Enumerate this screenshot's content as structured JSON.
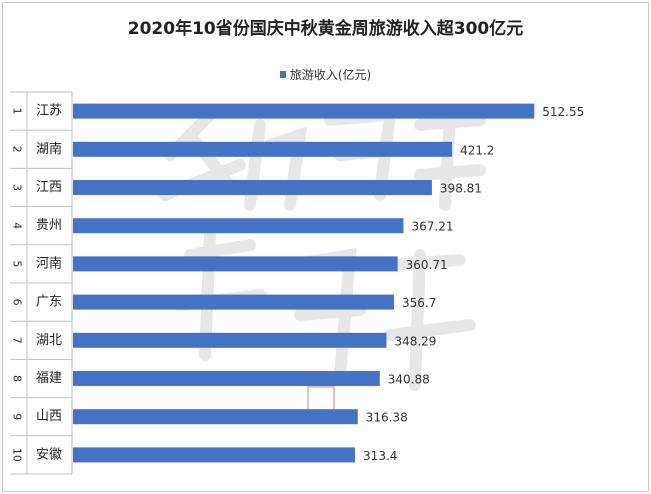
{
  "chart_data": {
    "type": "bar",
    "orientation": "horizontal",
    "title": "2020年10省份国庆中秋黄金周旅游收入超300亿元",
    "legend": "旅游收入(亿元)",
    "legend_position": "top",
    "ranks": [
      "1",
      "2",
      "3",
      "4",
      "5",
      "6",
      "7",
      "8",
      "9",
      "10"
    ],
    "categories": [
      "江苏",
      "湖南",
      "江西",
      "贵州",
      "河南",
      "广东",
      "湖北",
      "福建",
      "山西",
      "安徽"
    ],
    "values": [
      512.55,
      421.2,
      398.81,
      367.21,
      360.71,
      356.7,
      348.29,
      340.88,
      316.38,
      313.4
    ],
    "value_labels": [
      "512.55",
      "421.2",
      "398.81",
      "367.21",
      "360.71",
      "356.7",
      "348.29",
      "340.88",
      "316.38",
      "313.4"
    ],
    "xlim": [
      0,
      560
    ],
    "bar_color": "#4472c4",
    "grid": false
  }
}
